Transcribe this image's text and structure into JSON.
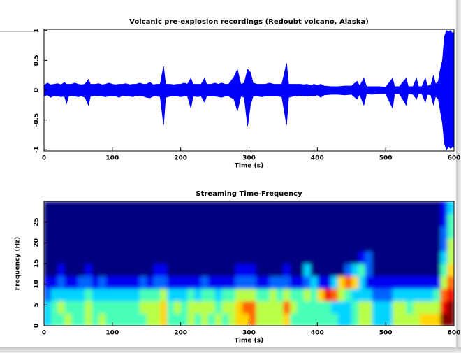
{
  "chart_data": [
    {
      "type": "line",
      "title": "Volcanic pre-explosion recordings (Redoubt volcano, Alaska)",
      "xlabel": "Time (s)",
      "color": "#0000ff",
      "xlim": [
        0,
        600
      ],
      "xticks": [
        0,
        100,
        200,
        300,
        400,
        500,
        600
      ],
      "ylim": [
        -1.02,
        1.02
      ],
      "yticks": [
        1,
        0.5,
        0,
        -0.5,
        -1
      ],
      "x": [
        0,
        5,
        10,
        15,
        20,
        25,
        30,
        33,
        36,
        40,
        45,
        50,
        55,
        60,
        65,
        68,
        75,
        80,
        85,
        90,
        95,
        100,
        105,
        110,
        115,
        120,
        125,
        130,
        135,
        140,
        145,
        150,
        155,
        160,
        165,
        170,
        175,
        178,
        185,
        190,
        195,
        200,
        205,
        210,
        215,
        218,
        225,
        230,
        235,
        238,
        245,
        250,
        255,
        260,
        265,
        270,
        278,
        283,
        288,
        293,
        298,
        302,
        306,
        312,
        318,
        324,
        330,
        336,
        342,
        348,
        355,
        358,
        365,
        370,
        375,
        380,
        385,
        390,
        395,
        400,
        405,
        410,
        420,
        430,
        440,
        450,
        458,
        462,
        468,
        472,
        480,
        490,
        500,
        510,
        513,
        520,
        530,
        533,
        540,
        545,
        548,
        553,
        558,
        561,
        566,
        570,
        573,
        577,
        580,
        583,
        586,
        589,
        592,
        595,
        598,
        600
      ],
      "y_max": [
        0.08,
        0.12,
        0.09,
        0.1,
        0.11,
        0.09,
        0.13,
        0.1,
        0.1,
        0.1,
        0.12,
        0.1,
        0.09,
        0.1,
        0.18,
        0.1,
        0.1,
        0.11,
        0.09,
        0.1,
        0.12,
        0.1,
        0.09,
        0.1,
        0.1,
        0.11,
        0.09,
        0.1,
        0.1,
        0.12,
        0.1,
        0.1,
        0.13,
        0.09,
        0.1,
        0.1,
        0.4,
        0.1,
        0.1,
        0.09,
        0.1,
        0.1,
        0.12,
        0.1,
        0.2,
        0.1,
        0.1,
        0.1,
        0.2,
        0.1,
        0.1,
        0.12,
        0.1,
        0.12,
        0.1,
        0.1,
        0.22,
        0.35,
        0.1,
        0.12,
        0.35,
        0.3,
        0.12,
        0.1,
        0.1,
        0.1,
        0.12,
        0.1,
        0.1,
        0.1,
        0.45,
        0.1,
        0.1,
        0.1,
        0.1,
        0.09,
        0.1,
        0.08,
        0.1,
        0.08,
        0.1,
        0.07,
        0.06,
        0.06,
        0.07,
        0.07,
        0.15,
        0.07,
        0.2,
        0.06,
        0.06,
        0.06,
        0.05,
        0.2,
        0.06,
        0.06,
        0.2,
        0.06,
        0.06,
        0.2,
        0.06,
        0.06,
        0.2,
        0.07,
        0.08,
        0.25,
        0.1,
        0.15,
        0.35,
        0.5,
        0.9,
        1,
        0.98,
        1,
        0.95,
        0.98
      ],
      "y_min": [
        -0.1,
        -0.08,
        -0.12,
        -0.09,
        -0.1,
        -0.11,
        -0.1,
        -0.22,
        -0.1,
        -0.09,
        -0.1,
        -0.11,
        -0.1,
        -0.12,
        -0.25,
        -0.1,
        -0.09,
        -0.1,
        -0.1,
        -0.11,
        -0.1,
        -0.1,
        -0.1,
        -0.12,
        -0.09,
        -0.1,
        -0.1,
        -0.11,
        -0.09,
        -0.1,
        -0.1,
        -0.12,
        -0.13,
        -0.1,
        -0.1,
        -0.11,
        -0.58,
        -0.12,
        -0.1,
        -0.1,
        -0.1,
        -0.11,
        -0.1,
        -0.1,
        -0.3,
        -0.1,
        -0.11,
        -0.1,
        -0.2,
        -0.1,
        -0.1,
        -0.1,
        -0.11,
        -0.12,
        -0.1,
        -0.1,
        -0.15,
        -0.35,
        -0.1,
        -0.12,
        -0.6,
        -0.25,
        -0.1,
        -0.1,
        -0.11,
        -0.1,
        -0.1,
        -0.1,
        -0.1,
        -0.11,
        -0.58,
        -0.12,
        -0.1,
        -0.1,
        -0.09,
        -0.1,
        -0.1,
        -0.09,
        -0.1,
        -0.08,
        -0.12,
        -0.08,
        -0.07,
        -0.07,
        -0.08,
        -0.07,
        -0.15,
        -0.07,
        -0.25,
        -0.06,
        -0.07,
        -0.06,
        -0.06,
        -0.3,
        -0.06,
        -0.06,
        -0.25,
        -0.06,
        -0.07,
        -0.15,
        -0.06,
        -0.06,
        -0.2,
        -0.07,
        -0.08,
        -0.25,
        -0.1,
        -0.15,
        -0.35,
        -0.55,
        -0.9,
        -1,
        -0.95,
        -0.98,
        -0.95,
        -0.97
      ]
    },
    {
      "type": "heatmap",
      "title": "Streaming Time-Frequency",
      "xlabel": "Time (s)",
      "ylabel": "Frequency (Hz)",
      "colormap": "jet",
      "zlim": [
        0,
        9
      ],
      "xlim": [
        0,
        600
      ],
      "xticks": [
        0,
        100,
        200,
        300,
        400,
        500,
        600
      ],
      "ylim": [
        0,
        30
      ],
      "yticks": [
        0,
        5,
        10,
        15,
        20,
        25
      ],
      "xbins": [
        0,
        10,
        20,
        30,
        40,
        50,
        60,
        70,
        80,
        90,
        100,
        110,
        120,
        130,
        140,
        150,
        160,
        170,
        180,
        190,
        200,
        210,
        220,
        230,
        240,
        250,
        260,
        270,
        280,
        290,
        300,
        310,
        320,
        330,
        340,
        350,
        360,
        370,
        380,
        390,
        400,
        410,
        420,
        430,
        440,
        450,
        460,
        470,
        480,
        490,
        500,
        510,
        520,
        530,
        540,
        550,
        560,
        570,
        580,
        590,
        600
      ],
      "ybins": [
        0,
        3,
        6,
        9,
        12,
        15,
        18,
        21,
        24,
        27,
        30
      ],
      "z": [
        [
          3,
          4,
          4,
          5,
          4,
          4,
          5,
          4,
          5,
          4,
          4,
          4,
          4,
          4,
          4,
          5,
          5,
          6,
          4,
          4,
          4,
          5,
          4,
          5,
          4,
          5,
          4,
          5,
          6,
          6,
          7,
          5,
          5,
          5,
          5,
          6,
          4,
          4,
          4,
          4,
          4,
          4,
          4,
          3,
          3,
          4,
          5,
          5,
          3,
          3,
          3,
          5,
          5,
          5,
          5,
          6,
          6,
          6,
          9,
          9
        ],
        [
          3,
          4,
          5,
          4,
          4,
          4,
          5,
          4,
          4,
          4,
          4,
          4,
          4,
          4,
          5,
          5,
          5,
          6,
          4,
          5,
          4,
          5,
          5,
          5,
          5,
          4,
          5,
          5,
          6,
          7,
          7,
          5,
          5,
          5,
          5,
          7,
          5,
          4,
          4,
          4,
          4,
          4,
          3,
          3,
          3,
          4,
          5,
          5,
          3,
          3,
          3,
          5,
          5,
          4,
          5,
          5,
          5,
          5,
          8,
          9
        ],
        [
          2,
          3,
          3,
          3,
          3,
          3,
          4,
          3,
          3,
          3,
          3,
          3,
          3,
          3,
          4,
          4,
          4,
          5,
          3,
          3,
          3,
          4,
          3,
          4,
          4,
          3,
          4,
          4,
          5,
          5,
          5,
          4,
          4,
          5,
          4,
          5,
          4,
          4,
          5,
          4,
          6,
          8,
          7,
          5,
          4,
          3,
          3,
          3,
          2,
          2,
          2,
          3,
          3,
          3,
          3,
          3,
          3,
          4,
          7,
          8
        ],
        [
          1,
          1,
          2,
          1,
          1,
          2,
          2,
          1,
          2,
          1,
          1,
          1,
          1,
          1,
          2,
          1,
          2,
          2,
          1,
          1,
          1,
          1,
          1,
          2,
          1,
          1,
          1,
          1,
          2,
          2,
          2,
          1,
          1,
          2,
          2,
          2,
          1,
          1,
          2,
          3,
          1,
          1,
          3,
          6,
          7,
          6,
          3,
          1,
          1,
          1,
          1,
          1,
          1,
          1,
          1,
          1,
          1,
          1,
          5,
          7
        ],
        [
          0,
          0,
          1,
          0,
          0,
          0,
          1,
          0,
          0,
          0,
          0,
          0,
          0,
          0,
          0,
          0,
          1,
          1,
          0,
          0,
          0,
          0,
          0,
          0,
          0,
          0,
          0,
          0,
          1,
          1,
          1,
          0,
          0,
          0,
          0,
          1,
          0,
          0,
          3,
          0,
          0,
          0,
          0,
          0,
          2,
          3,
          4,
          2,
          0,
          0,
          0,
          0,
          0,
          0,
          0,
          0,
          0,
          0,
          4,
          6
        ],
        [
          0,
          0,
          0,
          0,
          0,
          0,
          0,
          0,
          0,
          0,
          0,
          0,
          0,
          0,
          0,
          0,
          0,
          0,
          0,
          0,
          0,
          0,
          0,
          0,
          0,
          0,
          0,
          0,
          0,
          0,
          0,
          0,
          0,
          0,
          0,
          0,
          0,
          0,
          0,
          0,
          0,
          0,
          0,
          0,
          0,
          0,
          1,
          2,
          0,
          0,
          0,
          0,
          0,
          0,
          0,
          0,
          0,
          0,
          3,
          5
        ],
        [
          0,
          0,
          0,
          0,
          0,
          0,
          0,
          0,
          0,
          0,
          0,
          0,
          0,
          0,
          0,
          0,
          0,
          0,
          0,
          0,
          0,
          0,
          0,
          0,
          0,
          0,
          0,
          0,
          0,
          0,
          0,
          0,
          0,
          0,
          0,
          0,
          0,
          0,
          0,
          0,
          0,
          0,
          0,
          0,
          0,
          0,
          0,
          0,
          0,
          0,
          0,
          0,
          0,
          0,
          0,
          0,
          0,
          0,
          2,
          5
        ],
        [
          0,
          0,
          0,
          0,
          0,
          0,
          0,
          0,
          0,
          0,
          0,
          0,
          0,
          0,
          0,
          0,
          0,
          0,
          0,
          0,
          0,
          0,
          0,
          0,
          0,
          0,
          0,
          0,
          0,
          0,
          0,
          0,
          0,
          0,
          0,
          0,
          0,
          0,
          0,
          0,
          0,
          0,
          0,
          0,
          0,
          0,
          0,
          0,
          0,
          0,
          0,
          0,
          0,
          0,
          0,
          0,
          0,
          0,
          2,
          4
        ],
        [
          0,
          0,
          0,
          0,
          0,
          0,
          0,
          0,
          0,
          0,
          0,
          0,
          0,
          0,
          0,
          0,
          0,
          0,
          0,
          0,
          0,
          0,
          0,
          0,
          0,
          0,
          0,
          0,
          0,
          0,
          0,
          0,
          0,
          0,
          0,
          0,
          0,
          0,
          0,
          0,
          0,
          0,
          0,
          0,
          0,
          0,
          0,
          0,
          0,
          0,
          0,
          0,
          0,
          0,
          0,
          0,
          0,
          0,
          1,
          4
        ],
        [
          0,
          0,
          0,
          0,
          0,
          0,
          0,
          0,
          0,
          0,
          0,
          0,
          0,
          0,
          0,
          0,
          0,
          0,
          0,
          0,
          0,
          0,
          0,
          0,
          0,
          0,
          0,
          0,
          0,
          0,
          0,
          0,
          0,
          0,
          0,
          0,
          0,
          0,
          0,
          0,
          0,
          0,
          0,
          0,
          0,
          0,
          0,
          0,
          0,
          0,
          0,
          0,
          0,
          0,
          0,
          0,
          0,
          0,
          1,
          3
        ]
      ]
    }
  ]
}
